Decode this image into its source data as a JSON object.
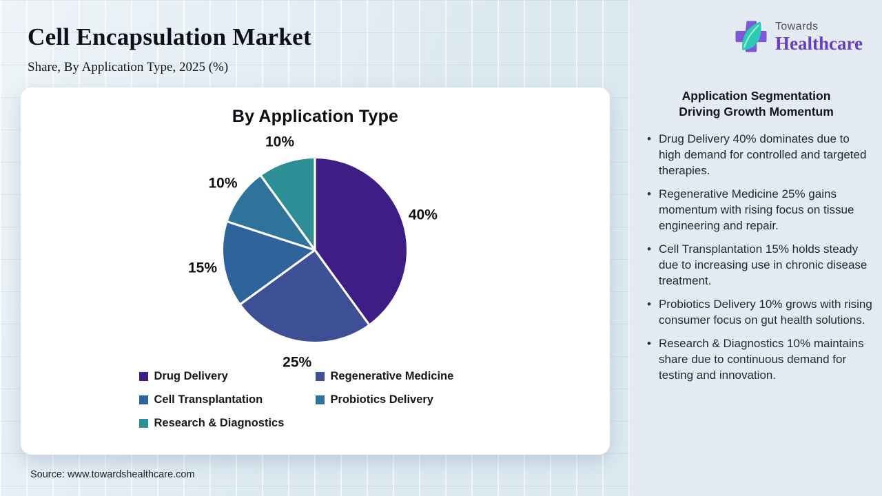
{
  "page": {
    "title": "Cell Encapsulation Market",
    "subtitle": "Share, By Application Type, 2025 (%)",
    "source": "Source: www.towardshealthcare.com"
  },
  "logo": {
    "top": "Towards",
    "bottom": "Healthcare",
    "colors": {
      "cross": "#7f55d9",
      "leaf": "#2ccab2",
      "wordmark": "#6a3ec0"
    }
  },
  "chart_data": {
    "type": "pie",
    "title": "By Application Type",
    "start_angle_deg": 0,
    "direction": "clockwise",
    "value_label_format": "{value}%",
    "legend_position": "bottom",
    "slices": [
      {
        "label": "Drug Delivery",
        "value": 40,
        "color": "#3e1e85"
      },
      {
        "label": "Regenerative Medicine",
        "value": 25,
        "color": "#3d5095"
      },
      {
        "label": "Cell Transplantation",
        "value": 15,
        "color": "#2f639c"
      },
      {
        "label": "Probiotics Delivery",
        "value": 10,
        "color": "#2e7399"
      },
      {
        "label": "Research & Diagnostics",
        "value": 10,
        "color": "#2d8e96"
      }
    ]
  },
  "sidebar": {
    "heading": "Application Segmentation Driving Growth Momentum",
    "bullets": [
      "Drug Delivery 40% dominates due to high demand for controlled and targeted therapies.",
      "Regenerative Medicine 25% gains momentum with rising focus on tissue engineering and repair.",
      "Cell Transplantation 15% holds steady due to increasing use in chronic disease treatment.",
      "Probiotics Delivery 10% grows with rising consumer focus on gut health solutions.",
      "Research & Diagnostics 10% maintains share due to continuous demand for testing and innovation."
    ]
  }
}
